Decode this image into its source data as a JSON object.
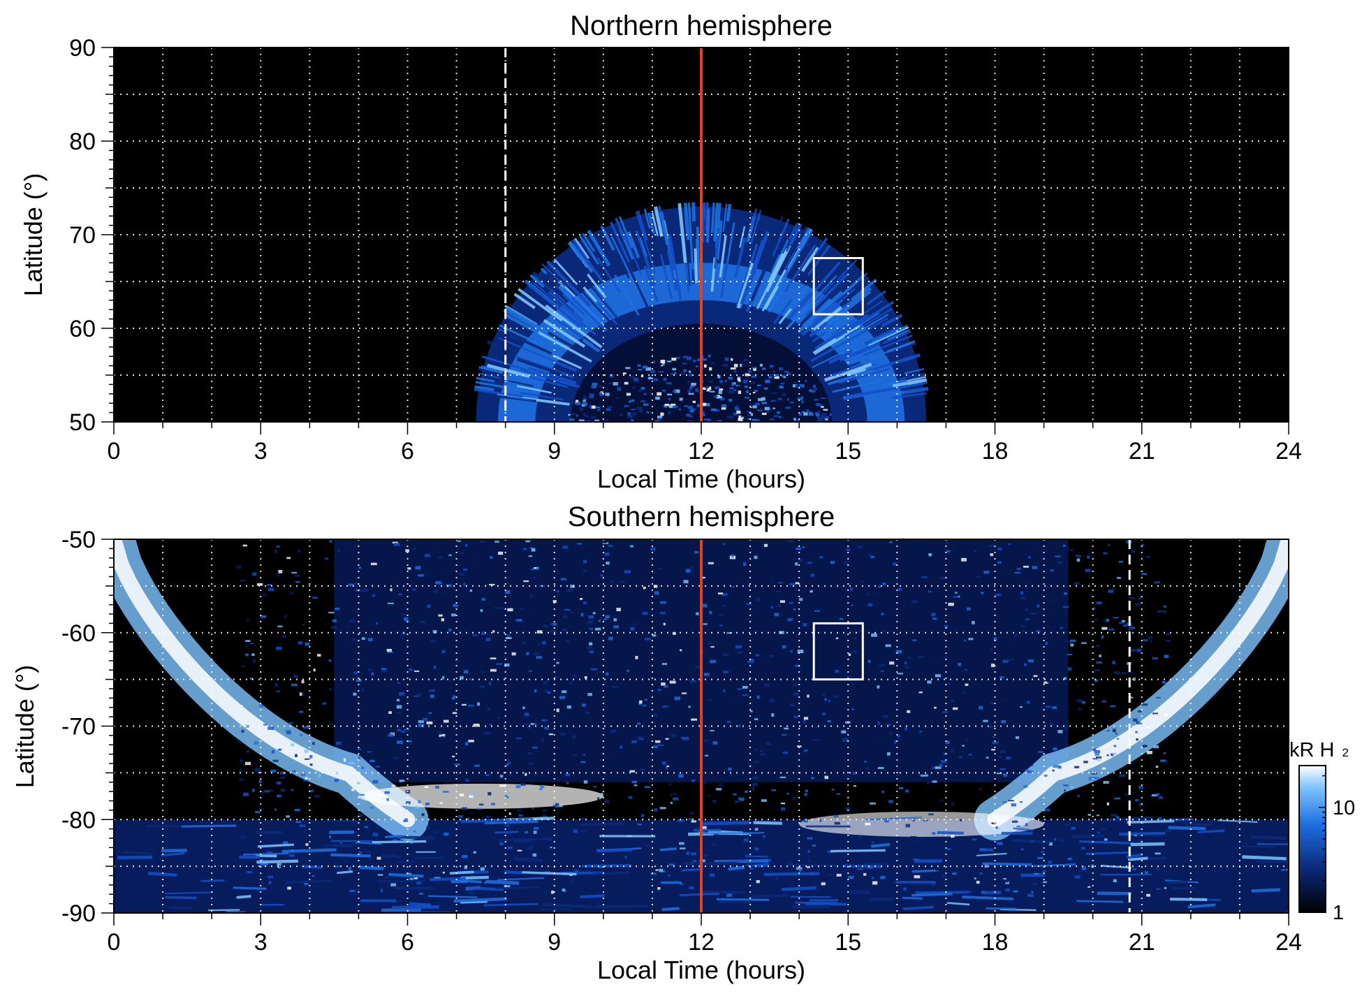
{
  "figure": {
    "colors": {
      "background": "#000000",
      "noon_line": "#e4421c",
      "grid": "#ffffff",
      "aurora_dark": "#0a2a7a",
      "aurora_mid": "#1e6fe0",
      "aurora_light": "#7ec4ff",
      "aurora_peak": "#ffffff"
    }
  },
  "chart_data": [
    {
      "type": "heatmap",
      "title": "Northern hemisphere",
      "xlabel": "Local Time (hours)",
      "ylabel": "Latitude (°)",
      "xlim": [
        0,
        24
      ],
      "ylim": [
        50,
        90
      ],
      "xticks": [
        0,
        3,
        6,
        9,
        12,
        15,
        18,
        21,
        24
      ],
      "yticks": [
        50,
        60,
        70,
        80,
        90
      ],
      "xtick_labels": [
        "0",
        "3",
        "6",
        "9",
        "12",
        "15",
        "18",
        "21",
        "24"
      ],
      "ytick_labels": [
        "50",
        "60",
        "70",
        "80",
        "90"
      ],
      "grid": true,
      "noon_line_x": 12,
      "dashed_line_x": 8.0,
      "box": {
        "x": [
          14.3,
          15.3
        ],
        "y": [
          61.5,
          67.5
        ]
      },
      "emission": {
        "x_range": [
          7.6,
          16.6
        ],
        "lat_edge": 73,
        "main_oval_lat": [
          63,
          67
        ],
        "intensity_kR": [
          1,
          12
        ]
      }
    },
    {
      "type": "heatmap",
      "title": "Southern hemisphere",
      "xlabel": "Local Time (hours)",
      "ylabel": "Latitude (°)",
      "xlim": [
        0,
        24
      ],
      "ylim": [
        -90,
        -50
      ],
      "xticks": [
        0,
        3,
        6,
        9,
        12,
        15,
        18,
        21,
        24
      ],
      "yticks": [
        -90,
        -80,
        -70,
        -60,
        -50
      ],
      "xtick_labels": [
        "0",
        "3",
        "6",
        "9",
        "12",
        "15",
        "18",
        "21",
        "24"
      ],
      "ytick_labels": [
        "-90",
        "-80",
        "-70",
        "-60",
        "-50"
      ],
      "grid": true,
      "noon_line_x": 12,
      "dashed_line_x": 20.75,
      "box": {
        "x": [
          14.3,
          15.3
        ],
        "y": [
          -65,
          -59
        ]
      },
      "emission": {
        "x_range": [
          0,
          24
        ],
        "main_oval_lat": [
          -82,
          -75
        ],
        "intensity_kR": [
          1,
          25
        ]
      }
    }
  ],
  "colorbar": {
    "label_main": "kR H",
    "label_sub": "2",
    "ticks": [
      "1",
      "10"
    ],
    "tick_values": [
      1,
      10
    ],
    "range": [
      1,
      25
    ]
  }
}
